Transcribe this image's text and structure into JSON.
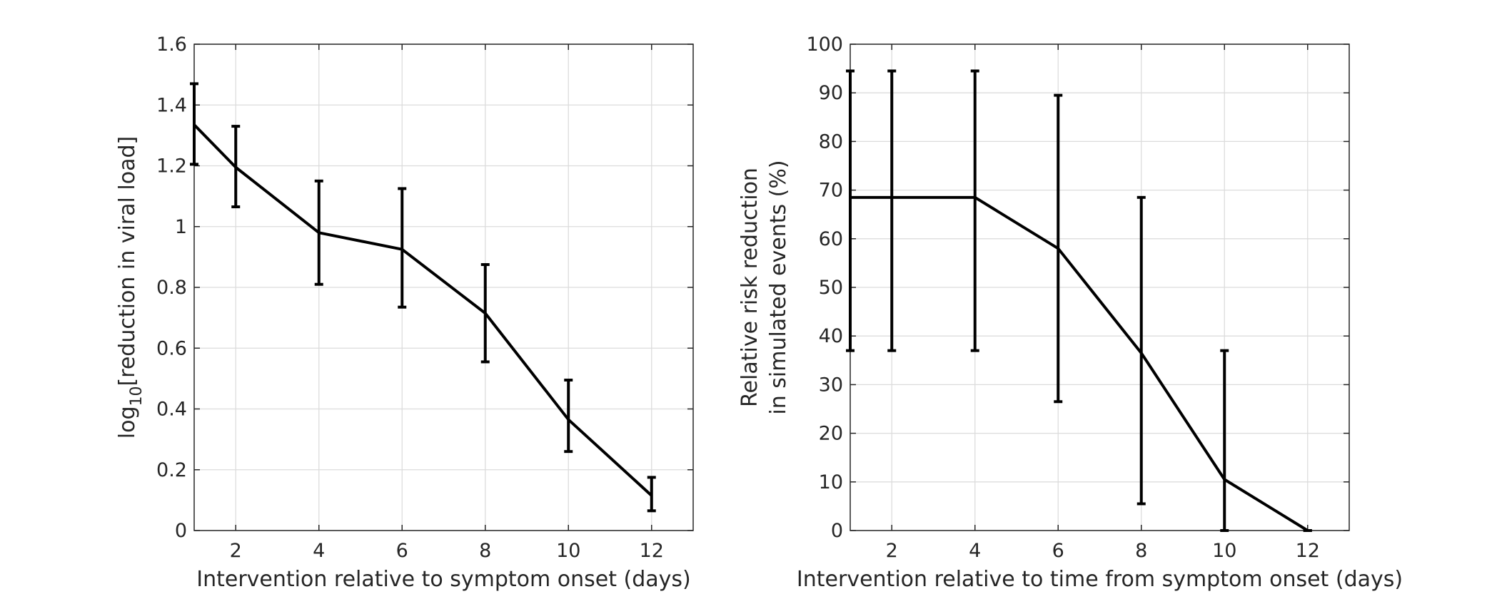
{
  "chart_data": [
    {
      "type": "line",
      "xlabel": "Intervention relative to symptom onset (days)",
      "ylabel": {
        "prefix": "log",
        "subscript": "10",
        "suffix": "[reduction in viral load]"
      },
      "xlim": [
        1,
        13
      ],
      "ylim": [
        0,
        1.6
      ],
      "xticks": [
        2,
        4,
        6,
        8,
        10,
        12
      ],
      "xtick_labels": [
        "2",
        "4",
        "6",
        "8",
        "10",
        "12"
      ],
      "yticks": [
        0,
        0.2,
        0.4,
        0.6,
        0.8,
        1,
        1.2,
        1.4,
        1.6
      ],
      "ytick_labels": [
        "0",
        "0.2",
        "0.4",
        "0.6",
        "0.8",
        "1",
        "1.2",
        "1.4",
        "1.6"
      ],
      "grid": true,
      "series": [
        {
          "x": [
            1,
            2,
            4,
            6,
            8,
            10,
            12
          ],
          "y": [
            1.335,
            1.195,
            0.98,
            0.925,
            0.715,
            0.365,
            0.115
          ],
          "err_low": [
            1.205,
            1.065,
            0.81,
            0.735,
            0.555,
            0.26,
            0.065
          ],
          "err_high": [
            1.47,
            1.33,
            1.15,
            1.125,
            0.875,
            0.495,
            0.175
          ]
        }
      ]
    },
    {
      "type": "line",
      "xlabel": "Intervention relative to time from symptom onset (days)",
      "ylabel_lines": [
        "Relative risk reduction",
        "in simulated events (%)"
      ],
      "xlim": [
        1,
        13
      ],
      "ylim": [
        0,
        100
      ],
      "xticks": [
        2,
        4,
        6,
        8,
        10,
        12
      ],
      "xtick_labels": [
        "2",
        "4",
        "6",
        "8",
        "10",
        "12"
      ],
      "yticks": [
        0,
        10,
        20,
        30,
        40,
        50,
        60,
        70,
        80,
        90,
        100
      ],
      "ytick_labels": [
        "0",
        "10",
        "20",
        "30",
        "40",
        "50",
        "60",
        "70",
        "80",
        "90",
        "100"
      ],
      "grid": true,
      "series": [
        {
          "x": [
            1,
            2,
            4,
            6,
            8,
            10,
            12
          ],
          "y": [
            68.5,
            68.5,
            68.5,
            58,
            36.5,
            10.5,
            0
          ],
          "err_low": [
            37,
            37,
            37,
            26.5,
            5.5,
            0,
            0
          ],
          "err_high": [
            94.5,
            94.5,
            94.5,
            89.5,
            68.5,
            37,
            0
          ]
        }
      ]
    }
  ]
}
